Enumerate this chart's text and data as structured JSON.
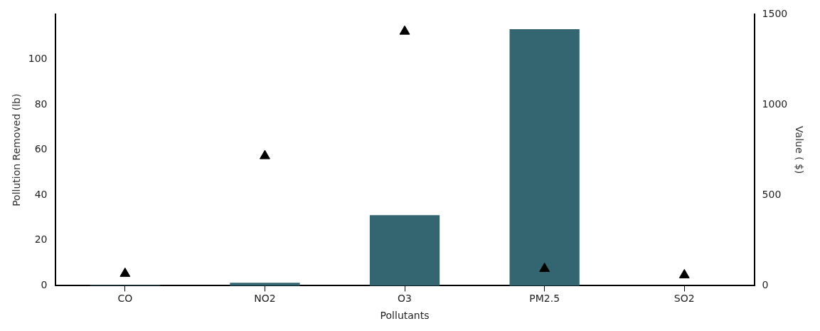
{
  "chart_data": {
    "type": "bar",
    "xlabel": "Pollutants",
    "ylabel": "Pollution Removed (lb)",
    "y2label": "Value ( $)",
    "categories": [
      "CO",
      "NO2",
      "O3",
      "PM2.5",
      "SO2"
    ],
    "series": [
      {
        "color": "#336670",
        "values": [
          0.3,
          1.3,
          31.2,
          113.4,
          0
        ]
      },
      {
        "type": "scatter",
        "axis": "y2",
        "color": "#000000",
        "marker": "triangle",
        "values": [
          67,
          717,
          1405,
          94,
          59
        ]
      }
    ],
    "ylim": [
      0,
      120
    ],
    "yticks": [
      0,
      20,
      40,
      60,
      80,
      100
    ],
    "y2lim": [
      0,
      1500
    ],
    "y2ticks": [
      0,
      500,
      1000,
      1500
    ],
    "grid": false,
    "legend": false
  }
}
